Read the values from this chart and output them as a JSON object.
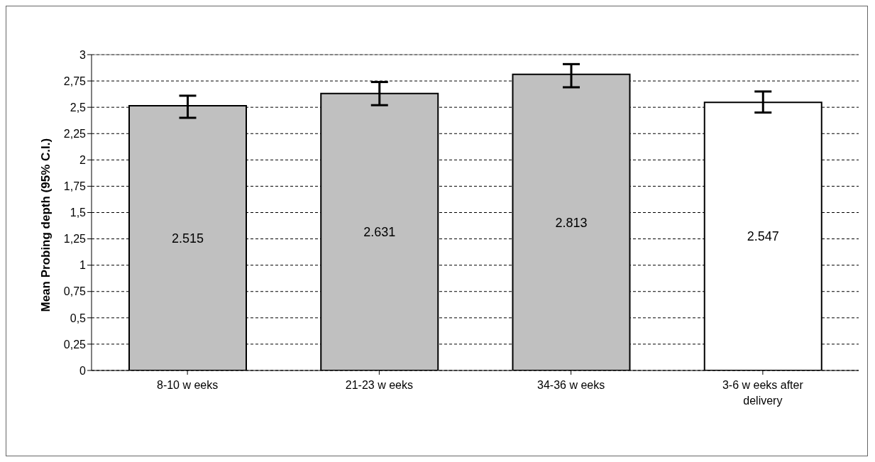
{
  "chart_data": {
    "type": "bar",
    "ylabel": "Mean Probing depth (95% C.I.)",
    "categories": [
      "8-10 w eeks",
      "21-23 w eeks",
      "34-36 w eeks",
      "3-6 w eeks after delivery"
    ],
    "values": [
      2.515,
      2.631,
      2.813,
      2.547
    ],
    "colors": [
      "#c0c0c0",
      "#c0c0c0",
      "#c0c0c0",
      "#ffffff"
    ],
    "errors": [
      [
        2.4,
        2.61
      ],
      [
        2.52,
        2.74
      ],
      [
        2.69,
        2.91
      ],
      [
        2.45,
        2.65
      ]
    ],
    "data_labels": true,
    "ylim": [
      0,
      3
    ],
    "yticks": [
      0,
      {
        "value": 0.25,
        "label": "0,25"
      },
      {
        "value": 0.5,
        "label": "0,5"
      },
      {
        "value": 0.75,
        "label": "0,75"
      },
      1,
      {
        "value": 1.25,
        "label": "1,25"
      },
      {
        "value": 1.5,
        "label": "1,5"
      },
      {
        "value": 1.75,
        "label": "1,75"
      },
      2,
      {
        "value": 2.25,
        "label": "2,25"
      },
      {
        "value": 2.5,
        "label": "2,5"
      },
      {
        "value": 2.75,
        "label": "2,75"
      },
      3
    ],
    "grid": "y"
  }
}
